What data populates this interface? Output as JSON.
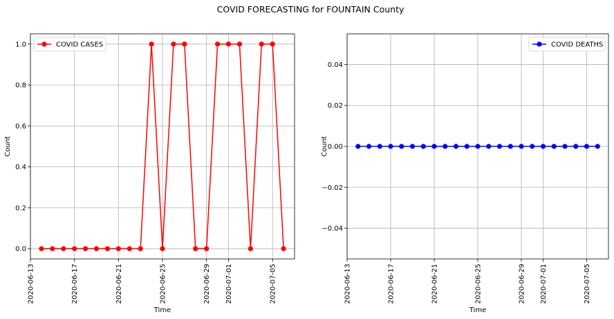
{
  "figure": {
    "title": "COVID FORECASTING for FOUNTAIN County"
  },
  "chart_data": [
    {
      "type": "line",
      "xlabel": "Time",
      "ylabel": "Count",
      "xlim": [
        "2020-06-13",
        "2020-07-07"
      ],
      "ylim": [
        -0.05,
        1.05
      ],
      "x_ticks": [
        "2020-06-13",
        "2020-06-17",
        "2020-06-21",
        "2020-06-25",
        "2020-06-29",
        "2020-07-01",
        "2020-07-05"
      ],
      "y_ticks": [
        0.0,
        0.2,
        0.4,
        0.6,
        0.8,
        1.0
      ],
      "y_tick_labels": [
        "0.0",
        "0.2",
        "0.4",
        "0.6",
        "0.8",
        "1.0"
      ],
      "grid": true,
      "legend": "top-left",
      "series": [
        {
          "name": "COVID CASES",
          "color": "#ff0000",
          "marker": "circle",
          "x": [
            "2020-06-14",
            "2020-06-15",
            "2020-06-16",
            "2020-06-17",
            "2020-06-18",
            "2020-06-19",
            "2020-06-20",
            "2020-06-21",
            "2020-06-22",
            "2020-06-23",
            "2020-06-24",
            "2020-06-25",
            "2020-06-26",
            "2020-06-27",
            "2020-06-28",
            "2020-06-29",
            "2020-06-30",
            "2020-07-01",
            "2020-07-02",
            "2020-07-03",
            "2020-07-04",
            "2020-07-05",
            "2020-07-06"
          ],
          "values": [
            0,
            0,
            0,
            0,
            0,
            0,
            0,
            0,
            0,
            0,
            1,
            0,
            1,
            1,
            0,
            0,
            1,
            1,
            1,
            0,
            1,
            1,
            0
          ]
        }
      ]
    },
    {
      "type": "line",
      "xlabel": "Time",
      "ylabel": "Count",
      "xlim": [
        "2020-06-13",
        "2020-07-07"
      ],
      "ylim": [
        -0.055,
        0.055
      ],
      "x_ticks": [
        "2020-06-13",
        "2020-06-17",
        "2020-06-21",
        "2020-06-25",
        "2020-06-29",
        "2020-07-01",
        "2020-07-05"
      ],
      "y_ticks": [
        -0.04,
        -0.02,
        0.0,
        0.02,
        0.04
      ],
      "y_tick_labels": [
        "−0.04",
        "−0.02",
        "0.00",
        "0.02",
        "0.04"
      ],
      "grid": true,
      "legend": "top-right",
      "series": [
        {
          "name": "COVID DEATHS",
          "color": "#0000ff",
          "marker": "circle",
          "x": [
            "2020-06-14",
            "2020-06-15",
            "2020-06-16",
            "2020-06-17",
            "2020-06-18",
            "2020-06-19",
            "2020-06-20",
            "2020-06-21",
            "2020-06-22",
            "2020-06-23",
            "2020-06-24",
            "2020-06-25",
            "2020-06-26",
            "2020-06-27",
            "2020-06-28",
            "2020-06-29",
            "2020-06-30",
            "2020-07-01",
            "2020-07-02",
            "2020-07-03",
            "2020-07-04",
            "2020-07-05",
            "2020-07-06"
          ],
          "values": [
            0,
            0,
            0,
            0,
            0,
            0,
            0,
            0,
            0,
            0,
            0,
            0,
            0,
            0,
            0,
            0,
            0,
            0,
            0,
            0,
            0,
            0,
            0
          ]
        }
      ]
    }
  ]
}
